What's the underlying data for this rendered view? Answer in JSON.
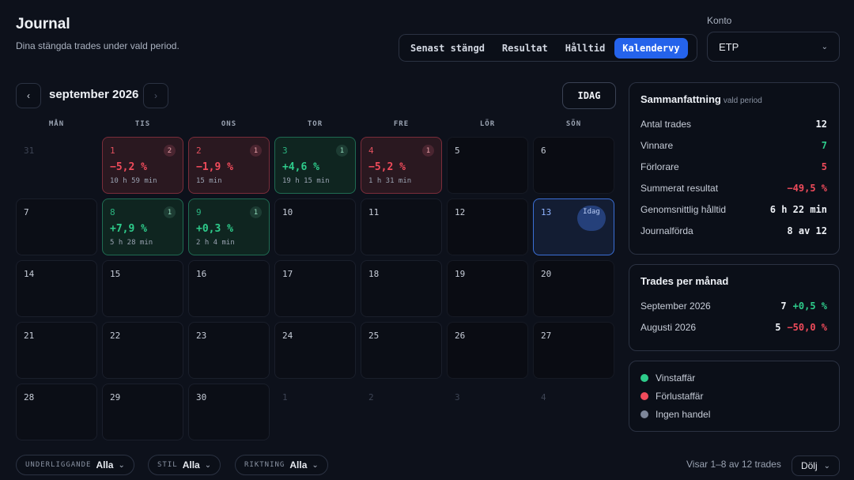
{
  "header": {
    "title": "Journal",
    "subtitle": "Dina stängda trades under vald period."
  },
  "tabs": [
    {
      "label": "Senast stängd",
      "active": false
    },
    {
      "label": "Resultat",
      "active": false
    },
    {
      "label": "Hålltid",
      "active": false
    },
    {
      "label": "Kalendervy",
      "active": true
    }
  ],
  "account": {
    "label": "Konto",
    "value": "ETP"
  },
  "calendar": {
    "month_label": "september 2026",
    "prev_label": "‹",
    "next_label": "›",
    "today_button": "IDAG",
    "weekdays": [
      "MÅN",
      "TIS",
      "ONS",
      "TOR",
      "FRE",
      "LÖR",
      "SÖN"
    ],
    "days": [
      {
        "day": "31",
        "type": "out"
      },
      {
        "day": "1",
        "type": "loss",
        "count": "2",
        "pct": "−5,2 %",
        "dur": "10 h 59 min"
      },
      {
        "day": "2",
        "type": "loss",
        "count": "1",
        "pct": "−1,9 %",
        "dur": "15 min"
      },
      {
        "day": "3",
        "type": "win",
        "count": "1",
        "pct": "+4,6 %",
        "dur": "19 h 15 min"
      },
      {
        "day": "4",
        "type": "loss",
        "count": "1",
        "pct": "−5,2 %",
        "dur": "1 h 31 min"
      },
      {
        "day": "5",
        "type": "wknd"
      },
      {
        "day": "6",
        "type": "wknd"
      },
      {
        "day": "7",
        "type": "normal"
      },
      {
        "day": "8",
        "type": "win",
        "count": "1",
        "pct": "+7,9 %",
        "dur": "5 h 28 min"
      },
      {
        "day": "9",
        "type": "win",
        "count": "1",
        "pct": "+0,3 %",
        "dur": "2 h 4 min"
      },
      {
        "day": "10",
        "type": "normal"
      },
      {
        "day": "11",
        "type": "normal"
      },
      {
        "day": "12",
        "type": "wknd"
      },
      {
        "day": "13",
        "type": "today",
        "today_label": "Idag"
      },
      {
        "day": "14",
        "type": "normal"
      },
      {
        "day": "15",
        "type": "normal"
      },
      {
        "day": "16",
        "type": "normal"
      },
      {
        "day": "17",
        "type": "normal"
      },
      {
        "day": "18",
        "type": "normal"
      },
      {
        "day": "19",
        "type": "wknd"
      },
      {
        "day": "20",
        "type": "wknd"
      },
      {
        "day": "21",
        "type": "normal"
      },
      {
        "day": "22",
        "type": "normal"
      },
      {
        "day": "23",
        "type": "normal"
      },
      {
        "day": "24",
        "type": "normal"
      },
      {
        "day": "25",
        "type": "normal"
      },
      {
        "day": "26",
        "type": "wknd"
      },
      {
        "day": "27",
        "type": "wknd"
      },
      {
        "day": "28",
        "type": "normal"
      },
      {
        "day": "29",
        "type": "normal"
      },
      {
        "day": "30",
        "type": "normal"
      },
      {
        "day": "1",
        "type": "out"
      },
      {
        "day": "2",
        "type": "out"
      },
      {
        "day": "3",
        "type": "out"
      },
      {
        "day": "4",
        "type": "out"
      }
    ]
  },
  "summary": {
    "title": "Sammanfattning",
    "subtitle": "vald period",
    "rows": [
      {
        "label": "Antal trades",
        "value": "12",
        "tone": "neutral"
      },
      {
        "label": "Vinnare",
        "value": "7",
        "tone": "green"
      },
      {
        "label": "Förlorare",
        "value": "5",
        "tone": "red"
      },
      {
        "label": "Summerat resultat",
        "value": "−49,5 %",
        "tone": "red"
      },
      {
        "label": "Genomsnittlig hålltid",
        "value": "6 h 22 min",
        "tone": "neutral"
      },
      {
        "label": "Journalförda",
        "value": "8 av 12",
        "tone": "neutral"
      }
    ]
  },
  "per_month": {
    "title": "Trades per månad",
    "rows": [
      {
        "label": "September 2026",
        "count": "7",
        "pct": "+0,5 %",
        "tone": "green"
      },
      {
        "label": "Augusti 2026",
        "count": "5",
        "pct": "−50,0 %",
        "tone": "red"
      }
    ]
  },
  "legend": [
    {
      "label": "Vinstaffär",
      "color": "#2ecc8b"
    },
    {
      "label": "Förlustaffär",
      "color": "#f04b5b"
    },
    {
      "label": "Ingen handel",
      "color": "#7d8699"
    }
  ],
  "filters": [
    {
      "label": "UNDERLIGGANDE",
      "value": "Alla"
    },
    {
      "label": "STIL",
      "value": "Alla"
    },
    {
      "label": "RIKTNING",
      "value": "Alla"
    }
  ],
  "footer": {
    "showing": "Visar 1–8 av 12 trades",
    "hide_label": "Dölj"
  },
  "icons": {
    "chevron": "chevron-down-icon"
  }
}
